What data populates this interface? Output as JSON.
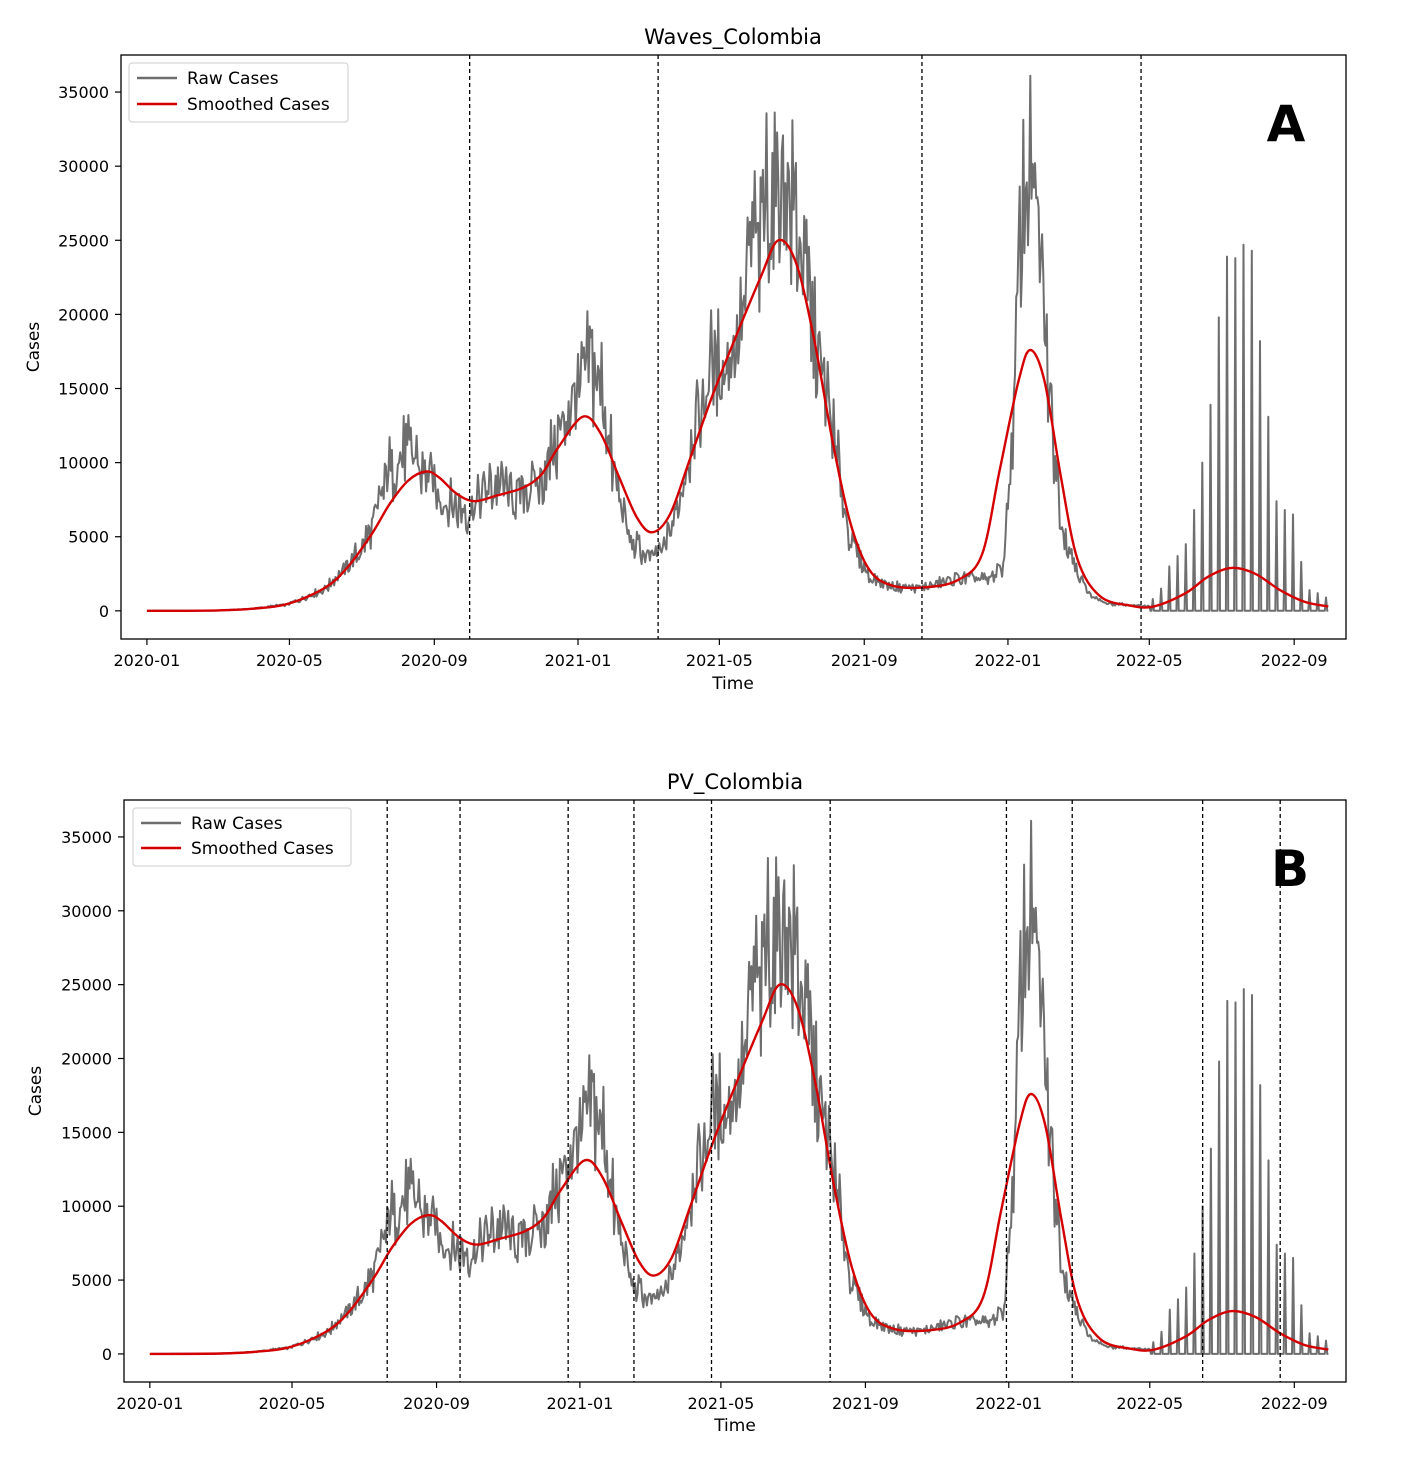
{
  "colors": {
    "raw": "#6e6e6e",
    "smoothed": "#d40000",
    "vline": "#000000",
    "frame": "#000000"
  },
  "chart_data": [
    {
      "type": "line",
      "title": "Waves_Colombia",
      "panel_label": "A",
      "xlabel": "Time",
      "ylabel": "Cases",
      "xlim": [
        "2019-12-10",
        "2022-10-15"
      ],
      "ylim": [
        -1900,
        37500
      ],
      "x_ticks": [
        "2020-01",
        "2020-05",
        "2020-09",
        "2021-01",
        "2021-05",
        "2021-09",
        "2022-01",
        "2022-05",
        "2022-09"
      ],
      "y_ticks": [
        0,
        5000,
        10000,
        15000,
        20000,
        25000,
        30000,
        35000
      ],
      "legend": {
        "position": "upper-left",
        "entries": [
          "Raw Cases",
          "Smoothed Cases"
        ]
      },
      "vertical_lines": [
        "2020-10-01",
        "2021-03-10",
        "2021-10-20",
        "2022-04-24"
      ],
      "series": [
        {
          "name": "Smoothed Cases",
          "points": [
            [
              "2020-01-01",
              0
            ],
            [
              "2020-03-01",
              30
            ],
            [
              "2020-04-01",
              150
            ],
            [
              "2020-05-01",
              500
            ],
            [
              "2020-06-01",
              1600
            ],
            [
              "2020-06-20",
              3000
            ],
            [
              "2020-07-10",
              5200
            ],
            [
              "2020-07-25",
              7200
            ],
            [
              "2020-08-10",
              8800
            ],
            [
              "2020-08-25",
              9400
            ],
            [
              "2020-09-05",
              9000
            ],
            [
              "2020-09-20",
              7900
            ],
            [
              "2020-10-05",
              7400
            ],
            [
              "2020-10-25",
              7800
            ],
            [
              "2020-11-15",
              8300
            ],
            [
              "2020-12-01",
              9200
            ],
            [
              "2020-12-15",
              11000
            ],
            [
              "2021-01-05",
              13100
            ],
            [
              "2021-01-20",
              12000
            ],
            [
              "2021-02-05",
              9000
            ],
            [
              "2021-02-20",
              6300
            ],
            [
              "2021-03-05",
              5300
            ],
            [
              "2021-03-20",
              6500
            ],
            [
              "2021-04-05",
              10000
            ],
            [
              "2021-04-25",
              14500
            ],
            [
              "2021-05-15",
              18500
            ],
            [
              "2021-06-05",
              22500
            ],
            [
              "2021-06-20",
              25000
            ],
            [
              "2021-07-05",
              23500
            ],
            [
              "2021-07-20",
              18500
            ],
            [
              "2021-08-05",
              11500
            ],
            [
              "2021-08-20",
              6000
            ],
            [
              "2021-09-05",
              2800
            ],
            [
              "2021-09-25",
              1700
            ],
            [
              "2021-10-25",
              1600
            ],
            [
              "2021-11-20",
              2100
            ],
            [
              "2021-12-10",
              3800
            ],
            [
              "2021-12-25",
              9500
            ],
            [
              "2022-01-10",
              15500
            ],
            [
              "2022-01-20",
              17600
            ],
            [
              "2022-02-01",
              15500
            ],
            [
              "2022-02-15",
              9000
            ],
            [
              "2022-03-01",
              3500
            ],
            [
              "2022-03-20",
              1000
            ],
            [
              "2022-04-15",
              350
            ],
            [
              "2022-05-05",
              300
            ],
            [
              "2022-06-01",
              1200
            ],
            [
              "2022-06-20",
              2300
            ],
            [
              "2022-07-10",
              2900
            ],
            [
              "2022-07-30",
              2500
            ],
            [
              "2022-08-20",
              1400
            ],
            [
              "2022-09-10",
              600
            ],
            [
              "2022-09-30",
              300
            ]
          ]
        }
      ]
    },
    {
      "type": "line",
      "title": "PV_Colombia",
      "panel_label": "B",
      "xlabel": "Time",
      "ylabel": "Cases",
      "xlim": [
        "2019-12-10",
        "2022-10-15"
      ],
      "ylim": [
        -1900,
        37500
      ],
      "x_ticks": [
        "2020-01",
        "2020-05",
        "2020-09",
        "2021-01",
        "2021-05",
        "2021-09",
        "2022-01",
        "2022-05",
        "2022-09"
      ],
      "y_ticks": [
        0,
        5000,
        10000,
        15000,
        20000,
        25000,
        30000,
        35000
      ],
      "legend": {
        "position": "upper-left",
        "entries": [
          "Raw Cases",
          "Smoothed Cases"
        ]
      },
      "vertical_lines": [
        "2020-07-21",
        "2020-09-21",
        "2020-12-22",
        "2021-02-16",
        "2021-04-23",
        "2021-08-02",
        "2021-12-30",
        "2022-02-24",
        "2022-06-15",
        "2022-08-20"
      ],
      "series": [
        {
          "name": "Smoothed Cases",
          "points": [
            [
              "2020-01-01",
              0
            ],
            [
              "2020-03-01",
              30
            ],
            [
              "2020-04-01",
              150
            ],
            [
              "2020-05-01",
              500
            ],
            [
              "2020-06-01",
              1600
            ],
            [
              "2020-06-20",
              3000
            ],
            [
              "2020-07-10",
              5200
            ],
            [
              "2020-07-25",
              7200
            ],
            [
              "2020-08-10",
              8800
            ],
            [
              "2020-08-25",
              9400
            ],
            [
              "2020-09-05",
              9000
            ],
            [
              "2020-09-20",
              7900
            ],
            [
              "2020-10-05",
              7400
            ],
            [
              "2020-10-25",
              7800
            ],
            [
              "2020-11-15",
              8300
            ],
            [
              "2020-12-01",
              9200
            ],
            [
              "2020-12-15",
              11000
            ],
            [
              "2021-01-05",
              13100
            ],
            [
              "2021-01-20",
              12000
            ],
            [
              "2021-02-05",
              9000
            ],
            [
              "2021-02-20",
              6300
            ],
            [
              "2021-03-05",
              5300
            ],
            [
              "2021-03-20",
              6500
            ],
            [
              "2021-04-05",
              10000
            ],
            [
              "2021-04-25",
              14500
            ],
            [
              "2021-05-15",
              18500
            ],
            [
              "2021-06-05",
              22500
            ],
            [
              "2021-06-20",
              25000
            ],
            [
              "2021-07-05",
              23500
            ],
            [
              "2021-07-20",
              18500
            ],
            [
              "2021-08-05",
              11500
            ],
            [
              "2021-08-20",
              6000
            ],
            [
              "2021-09-05",
              2800
            ],
            [
              "2021-09-25",
              1700
            ],
            [
              "2021-10-25",
              1600
            ],
            [
              "2021-11-20",
              2100
            ],
            [
              "2021-12-10",
              3800
            ],
            [
              "2021-12-25",
              9500
            ],
            [
              "2022-01-10",
              15500
            ],
            [
              "2022-01-20",
              17600
            ],
            [
              "2022-02-01",
              15500
            ],
            [
              "2022-02-15",
              9000
            ],
            [
              "2022-03-01",
              3500
            ],
            [
              "2022-03-20",
              1000
            ],
            [
              "2022-04-15",
              350
            ],
            [
              "2022-05-05",
              300
            ],
            [
              "2022-06-01",
              1200
            ],
            [
              "2022-06-20",
              2300
            ],
            [
              "2022-07-10",
              2900
            ],
            [
              "2022-07-30",
              2500
            ],
            [
              "2022-08-20",
              1400
            ],
            [
              "2022-09-10",
              600
            ],
            [
              "2022-09-30",
              300
            ]
          ]
        }
      ],
      "raw_series": {
        "name": "Raw Cases",
        "note_absent": true
      }
    }
  ],
  "raw_trend": {
    "name": "Raw Cases",
    "daily_base": [
      [
        "2020-01-01",
        0
      ],
      [
        "2020-03-01",
        20
      ],
      [
        "2020-04-01",
        150
      ],
      [
        "2020-05-01",
        450
      ],
      [
        "2020-06-01",
        1500
      ],
      [
        "2020-06-20",
        3000
      ],
      [
        "2020-07-10",
        5500
      ],
      [
        "2020-07-25",
        9500
      ],
      [
        "2020-08-10",
        10800
      ],
      [
        "2020-08-25",
        9500
      ],
      [
        "2020-09-10",
        7300
      ],
      [
        "2020-09-30",
        6800
      ],
      [
        "2020-10-15",
        8000
      ],
      [
        "2020-10-25",
        8600
      ],
      [
        "2020-11-10",
        7600
      ],
      [
        "2020-11-25",
        8400
      ],
      [
        "2020-12-10",
        10500
      ],
      [
        "2020-12-25",
        13500
      ],
      [
        "2021-01-10",
        16500
      ],
      [
        "2021-01-20",
        15500
      ],
      [
        "2021-02-01",
        9000
      ],
      [
        "2021-02-15",
        4500
      ],
      [
        "2021-03-05",
        3600
      ],
      [
        "2021-03-15",
        4300
      ],
      [
        "2021-03-25",
        6500
      ],
      [
        "2021-04-10",
        12500
      ],
      [
        "2021-04-25",
        16500
      ],
      [
        "2021-05-10",
        17000
      ],
      [
        "2021-05-25",
        22000
      ],
      [
        "2021-06-10",
        27500
      ],
      [
        "2021-06-25",
        29500
      ],
      [
        "2021-07-05",
        27000
      ],
      [
        "2021-07-20",
        19000
      ],
      [
        "2021-08-05",
        12000
      ],
      [
        "2021-08-20",
        5000
      ],
      [
        "2021-09-05",
        2200
      ],
      [
        "2021-09-25",
        1700
      ],
      [
        "2021-10-20",
        1500
      ],
      [
        "2021-11-20",
        2200
      ],
      [
        "2021-12-15",
        2100
      ],
      [
        "2021-12-28",
        3000
      ],
      [
        "2022-01-05",
        12000
      ],
      [
        "2022-01-12",
        27000
      ],
      [
        "2022-01-18",
        30500
      ],
      [
        "2022-01-25",
        27000
      ],
      [
        "2022-02-05",
        15000
      ],
      [
        "2022-02-15",
        6000
      ],
      [
        "2022-02-25",
        3500
      ],
      [
        "2022-03-10",
        1200
      ],
      [
        "2022-03-25",
        500
      ],
      [
        "2022-04-20",
        350
      ],
      [
        "2022-05-01",
        300
      ]
    ],
    "weekly_spikes": [
      [
        "2022-05-04",
        800
      ],
      [
        "2022-05-11",
        1500
      ],
      [
        "2022-05-18",
        3000
      ],
      [
        "2022-05-25",
        3700
      ],
      [
        "2022-06-01",
        4500
      ],
      [
        "2022-06-08",
        6800
      ],
      [
        "2022-06-15",
        10000
      ],
      [
        "2022-06-22",
        13900
      ],
      [
        "2022-06-29",
        19800
      ],
      [
        "2022-07-06",
        23900
      ],
      [
        "2022-07-13",
        23800
      ],
      [
        "2022-07-20",
        24700
      ],
      [
        "2022-07-27",
        24300
      ],
      [
        "2022-08-03",
        18200
      ],
      [
        "2022-08-10",
        13100
      ],
      [
        "2022-08-17",
        7400
      ],
      [
        "2022-08-24",
        6800
      ],
      [
        "2022-08-31",
        6500
      ],
      [
        "2022-09-07",
        3300
      ],
      [
        "2022-09-14",
        1400
      ],
      [
        "2022-09-21",
        1200
      ],
      [
        "2022-09-28",
        900
      ]
    ]
  }
}
